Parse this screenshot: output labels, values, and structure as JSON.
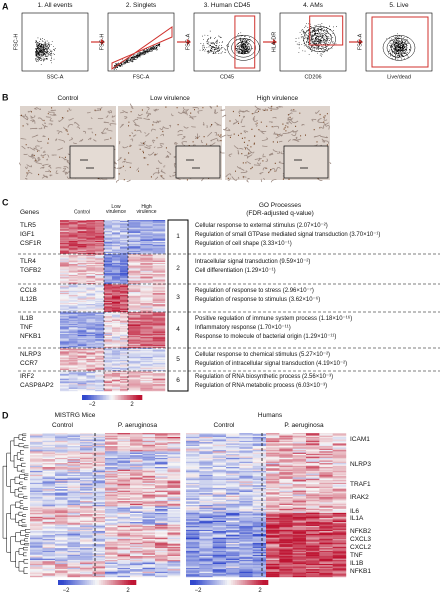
{
  "panels": {
    "a": {
      "label": "A",
      "gates": [
        {
          "title": "1. All events",
          "x_label": "SSC-A",
          "y_label": "FSC-H"
        },
        {
          "title": "2. Singlets",
          "x_label": "FSC-A",
          "y_label": "FSC-H"
        },
        {
          "title": "3. Human CD45",
          "x_label": "CD45",
          "y_label": "FSC-A"
        },
        {
          "title": "4. AMs",
          "x_label": "CD206",
          "y_label": "HLA-DR"
        },
        {
          "title": "5. Live",
          "x_label": "Live/dead",
          "y_label": "FSC-A"
        }
      ]
    },
    "b": {
      "label": "B",
      "images": [
        "Control",
        "Low virulence",
        "High virulence"
      ]
    },
    "c": {
      "label": "C",
      "genes_header": "Genes",
      "columns": [
        "Control",
        "Low virulence",
        "High virulence"
      ],
      "go_header": "GO Processes",
      "go_subheader": "(FDR-adjusted q-value)",
      "clusters": [
        {
          "number": "1",
          "genes": [
            "TLR5",
            "IGF1",
            "CSF1R"
          ],
          "processes": [
            "Cellular response to external stimulus (2.07×10⁻²)",
            "Regulation of small GTPase mediated signal transduction (3.70×10⁻¹)",
            "Regulation of cell shape (3.33×10⁻¹)"
          ]
        },
        {
          "number": "2",
          "genes": [
            "TLR4",
            "TGFB2"
          ],
          "processes": [
            "Intracellular signal transduction (9.59×10⁻²)",
            "Cell differentiation (1.29×10⁻¹)"
          ]
        },
        {
          "number": "3",
          "genes": [
            "CCL8",
            "IL12B"
          ],
          "processes": [
            "Regulation of response to stress (2.96×10⁻⁷)",
            "Regulation of response to stimulus (3.62×10⁻⁶)"
          ]
        },
        {
          "number": "4",
          "genes": [
            "IL1B",
            "TNF",
            "NFKB1"
          ],
          "processes": [
            "Positive regulation of immune system process (1.18×10⁻¹⁶)",
            "Inflammatory response (1.70×10⁻¹¹)",
            "Response to molecule of bacterial origin (1.29×10⁻¹¹)"
          ]
        },
        {
          "number": "5",
          "genes": [
            "NLRP3",
            "CCR7"
          ],
          "processes": [
            "Cellular response to chemical stimulus (5.27×10⁻²)",
            "Regulation of intracellular signal transduction (4.19×10⁻²)"
          ]
        },
        {
          "number": "6",
          "genes": [
            "IRF2",
            "CASP8AP2"
          ],
          "processes": [
            "Regulation of RNA biosynthetic process (2.56×10⁻³)",
            "Regulation of RNA metabolic process (6.03×10⁻³)"
          ]
        }
      ],
      "colorbar_ticks": [
        "−2",
        "2"
      ]
    },
    "d": {
      "label": "D",
      "groups": [
        {
          "title": "MISTRG Mice",
          "conditions": [
            "Control",
            "P. aeruginosa"
          ],
          "colorbar_ticks": [
            "−2",
            "2"
          ]
        },
        {
          "title": "Humans",
          "conditions": [
            "Control",
            "P. aeruginosa"
          ],
          "colorbar_ticks": [
            "−2",
            "2"
          ]
        }
      ],
      "genes": [
        "ICAM1",
        "NLRP3",
        "TRAF1",
        "IRAK2",
        "IL6",
        "IL1A",
        "NFKB2",
        "CXCL3",
        "CXCL2",
        "TNF",
        "IL1B",
        "NFKB1"
      ]
    }
  }
}
